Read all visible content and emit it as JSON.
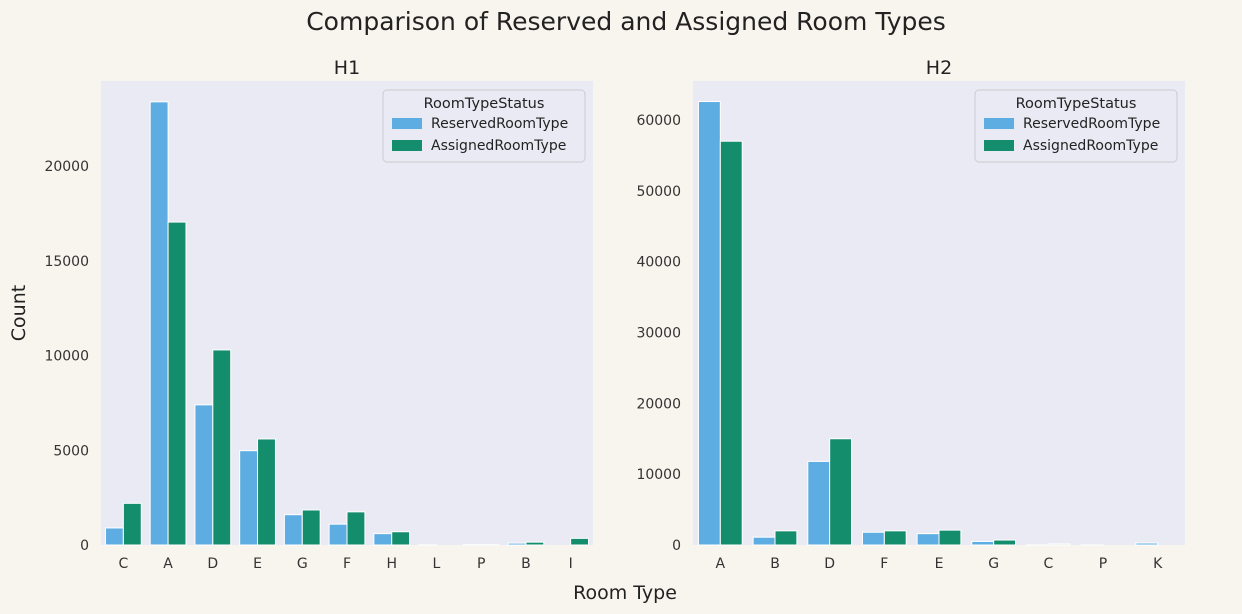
{
  "figure": {
    "suptitle": "Comparison of Reserved and Assigned Room Types",
    "xlabel": "Room Type",
    "ylabel": "Count"
  },
  "colors": {
    "reserved": "#5dade2",
    "assigned": "#138d6c",
    "plot_bg": "#e9eaf3",
    "figure_bg": "#f8f5ee"
  },
  "chart_data": [
    {
      "type": "bar",
      "title": "H1",
      "categories": [
        "C",
        "A",
        "D",
        "E",
        "G",
        "F",
        "H",
        "L",
        "P",
        "B",
        "I"
      ],
      "series": [
        {
          "name": "ReservedRoomType",
          "values": [
            900,
            23400,
            7400,
            4980,
            1600,
            1100,
            600,
            6,
            12,
            100,
            0
          ]
        },
        {
          "name": "AssignedRoomType",
          "values": [
            2200,
            17050,
            10300,
            5600,
            1850,
            1750,
            700,
            0,
            12,
            150,
            350
          ]
        }
      ],
      "ylim": [
        0,
        24500
      ],
      "yticks": [
        0,
        5000,
        10000,
        15000,
        20000
      ],
      "legend": {
        "title": "RoomTypeStatus",
        "position": "top-right"
      },
      "grid": false
    },
    {
      "type": "bar",
      "title": "H2",
      "categories": [
        "A",
        "B",
        "D",
        "F",
        "E",
        "G",
        "C",
        "P",
        "K"
      ],
      "series": [
        {
          "name": "ReservedRoomType",
          "values": [
            62600,
            1100,
            11800,
            1800,
            1600,
            500,
            10,
            8,
            280
          ]
        },
        {
          "name": "AssignedRoomType",
          "values": [
            57000,
            2000,
            15000,
            2000,
            2100,
            700,
            150,
            0,
            0
          ]
        }
      ],
      "ylim": [
        0,
        65500
      ],
      "yticks": [
        0,
        10000,
        20000,
        30000,
        40000,
        50000,
        60000
      ],
      "legend": {
        "title": "RoomTypeStatus",
        "position": "top-right"
      },
      "grid": false
    }
  ]
}
